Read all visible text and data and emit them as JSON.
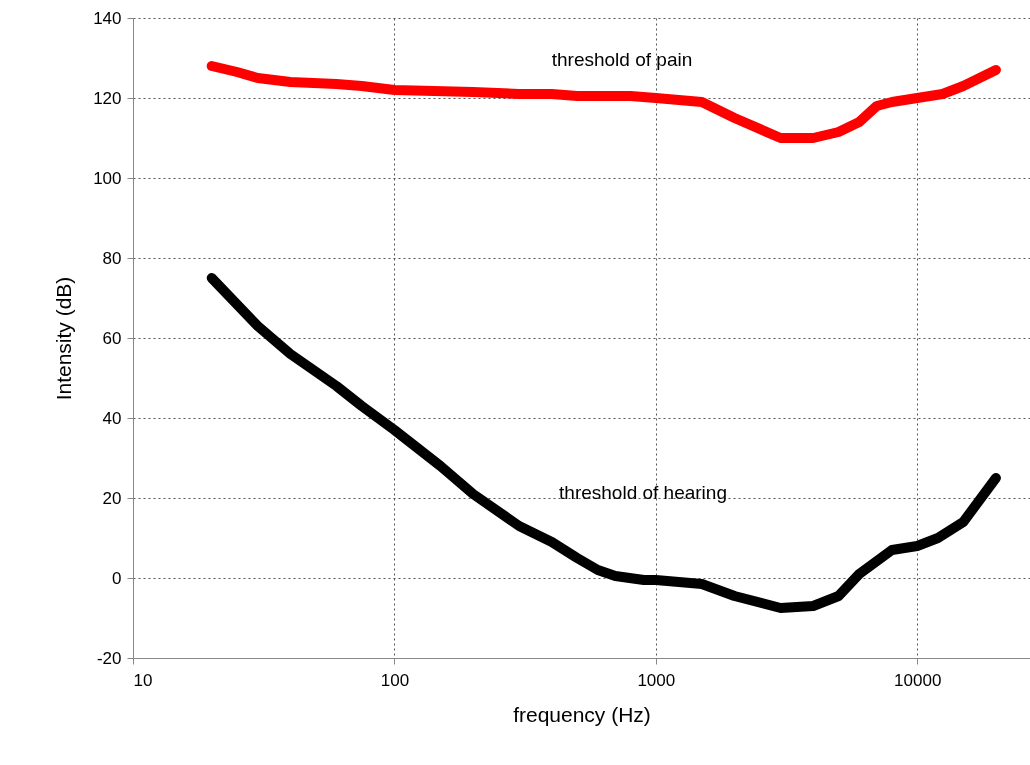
{
  "chart_data": {
    "type": "line",
    "xlabel": "frequency (Hz)",
    "ylabel": "Intensity (dB)",
    "log": "x",
    "grid": true,
    "line_style": "solid",
    "xlim": [
      10,
      27000
    ],
    "xticks": [
      10,
      100,
      1000,
      10000
    ],
    "ylim": [
      -20,
      140
    ],
    "yticks": [
      -20,
      0,
      20,
      40,
      60,
      80,
      100,
      120,
      140
    ],
    "series": [
      {
        "color": "#ff0000",
        "x": [
          20,
          25,
          30,
          40,
          60,
          75,
          100,
          200,
          300,
          400,
          500,
          800,
          1000,
          1500,
          2000,
          3000,
          4000,
          5000,
          6000,
          7000,
          8000,
          10000,
          12500,
          15000,
          20000
        ],
        "values": [
          128,
          126.5,
          125,
          124,
          123.5,
          123,
          122,
          121.5,
          121,
          121,
          120.5,
          120.5,
          120,
          119,
          115,
          110,
          110,
          111.5,
          114,
          118,
          119,
          120,
          121,
          123,
          127
        ]
      },
      {
        "color": "#000000",
        "x": [
          20,
          30,
          40,
          60,
          75,
          100,
          150,
          200,
          300,
          400,
          500,
          600,
          700,
          900,
          1000,
          1500,
          2000,
          3000,
          4000,
          5000,
          6000,
          8000,
          10000,
          12000,
          15000,
          20000
        ],
        "values": [
          75,
          63,
          56,
          48,
          43,
          37,
          28,
          21,
          13,
          9,
          5,
          2,
          0.5,
          -0.5,
          -0.5,
          -1.5,
          -4.5,
          -7.5,
          -7,
          -4.5,
          1,
          7,
          8,
          10,
          14,
          25
        ]
      }
    ],
    "annotations": [
      "threshold of pain",
      "threshold of hearing"
    ]
  }
}
